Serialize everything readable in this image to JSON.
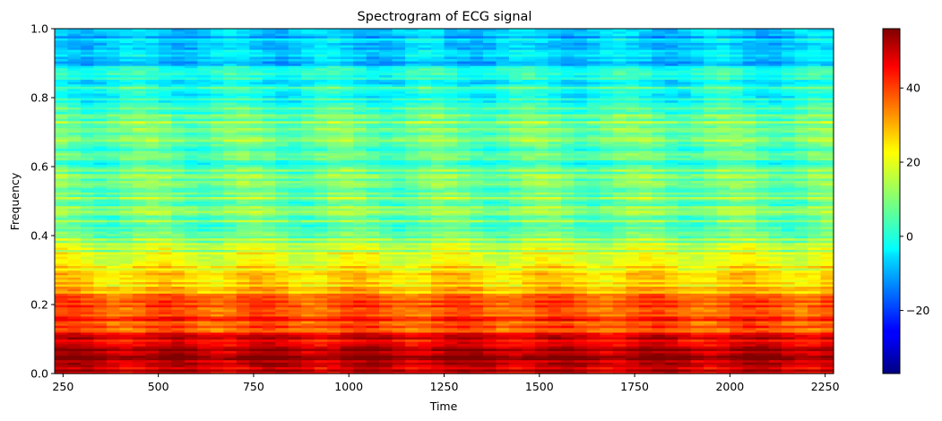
{
  "chart_data": {
    "type": "heatmap",
    "title": "Spectrogram of ECG signal",
    "xlabel": "Time",
    "ylabel": "Frequency",
    "xlim": [
      228,
      2272
    ],
    "ylim": [
      0.0,
      1.0
    ],
    "x_ticks": [
      250,
      500,
      750,
      1000,
      1250,
      1500,
      1750,
      2000,
      2250
    ],
    "y_ticks": [
      0.0,
      0.2,
      0.4,
      0.6,
      0.8,
      1.0
    ],
    "colormap": "jet",
    "colorbar": {
      "range": [
        -37,
        56
      ],
      "ticks": [
        -20,
        0,
        20,
        40
      ]
    },
    "power_profile": {
      "frequency": [
        0.0,
        0.01,
        0.02,
        0.04,
        0.1,
        0.12,
        0.2,
        0.22,
        0.25,
        0.3,
        0.35,
        0.4,
        0.45,
        0.5,
        0.55,
        0.6,
        0.65,
        0.7,
        0.72,
        0.75,
        0.8,
        0.85,
        0.9,
        0.95,
        1.0
      ],
      "level_db": [
        50,
        53,
        49,
        52,
        48,
        40,
        37,
        32,
        25,
        23,
        18,
        10,
        8,
        10,
        8,
        6,
        5,
        10,
        12,
        5,
        2,
        0,
        -4,
        -7,
        -9
      ]
    },
    "grid": false
  }
}
